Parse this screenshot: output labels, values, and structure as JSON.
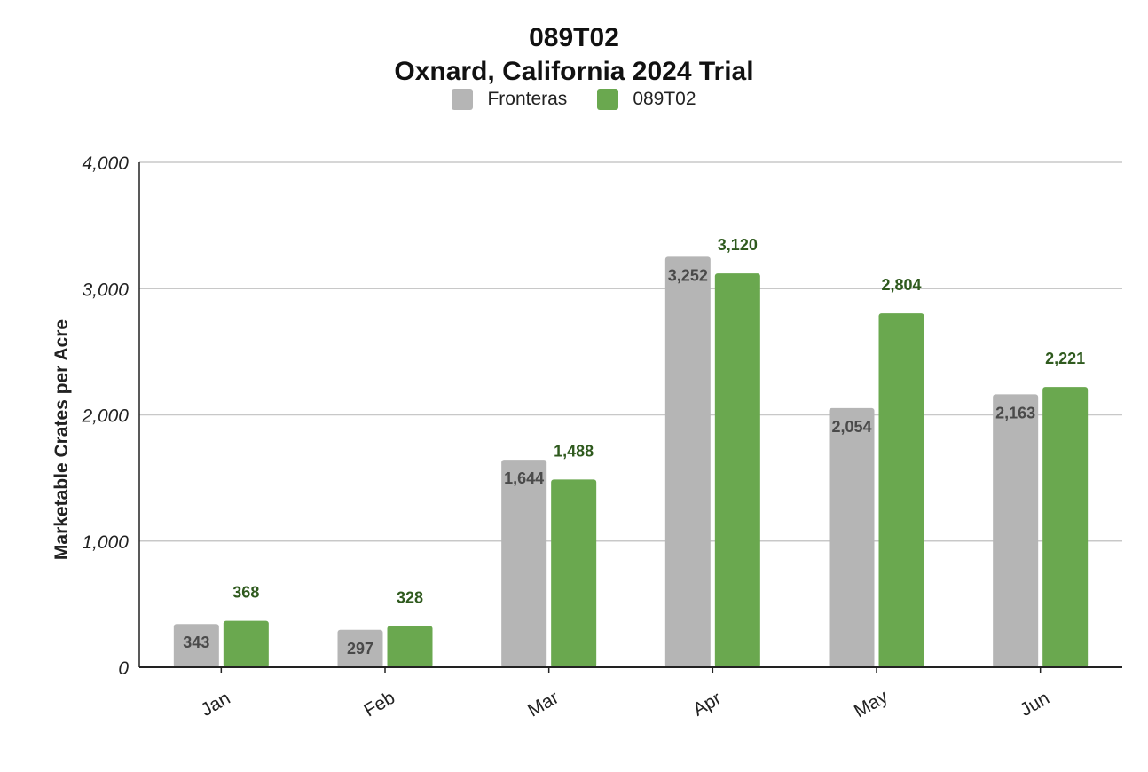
{
  "chart_data": {
    "type": "bar",
    "title": "089T02",
    "subtitle": "Oxnard, California 2024 Trial",
    "xlabel": "",
    "ylabel": "Marketable Crates per Acre",
    "categories": [
      "Jan",
      "Feb",
      "Mar",
      "Apr",
      "May",
      "Jun"
    ],
    "series": [
      {
        "name": "Fronteras",
        "color": "#b5b5b5",
        "values": [
          343,
          297,
          1644,
          3252,
          2054,
          2163
        ],
        "labels": [
          "343",
          "297",
          "1,644",
          "3,252",
          "2,054",
          "2,163"
        ]
      },
      {
        "name": "089T02",
        "color": "#6aa84f",
        "values": [
          368,
          328,
          1488,
          3120,
          2804,
          2221
        ],
        "labels": [
          "368",
          "328",
          "1,488",
          "3,120",
          "2,804",
          "2,221"
        ]
      }
    ],
    "ylim": [
      0,
      4000
    ],
    "yticks": [
      0,
      1000,
      2000,
      3000,
      4000
    ],
    "ytick_labels": [
      "0",
      "1,000",
      "2,000",
      "3,000",
      "4,000"
    ],
    "grid": true,
    "legend": "top-center"
  }
}
